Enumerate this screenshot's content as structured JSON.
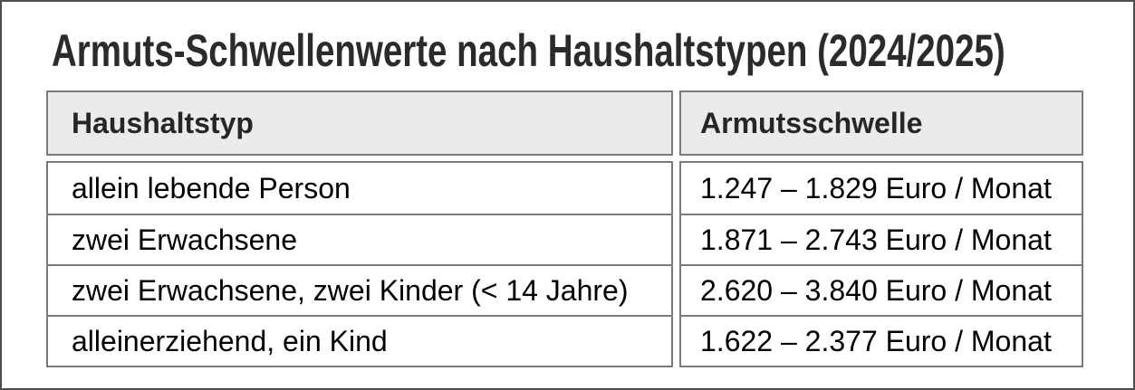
{
  "page": {
    "title": "Armuts-Schwellenwerte nach Haushaltstypen (2024/2025)"
  },
  "table": {
    "columns": [
      {
        "label": "Haushaltstyp"
      },
      {
        "label": "Armutsschwelle"
      }
    ],
    "rows": [
      {
        "haushaltstyp": "allein lebende Person",
        "armutsschwelle": "1.247 – 1.829 Euro / Monat"
      },
      {
        "haushaltstyp": "zwei Erwachsene",
        "armutsschwelle": "1.871 – 2.743 Euro / Monat"
      },
      {
        "haushaltstyp": "zwei Erwachsene, zwei Kinder (< 14 Jahre)",
        "armutsschwelle": "2.620 – 3.840 Euro / Monat"
      },
      {
        "haushaltstyp": "alleinerziehend, ein Kind",
        "armutsschwelle": "1.622 – 2.377 Euro / Monat"
      }
    ]
  },
  "colors": {
    "frame_border": "#4d4d4d",
    "cell_border": "#7b7b7b",
    "header_bg": "#ebebeb",
    "header_text": "#262626",
    "title_text": "#2b2b2b",
    "body_text": "#000000"
  }
}
